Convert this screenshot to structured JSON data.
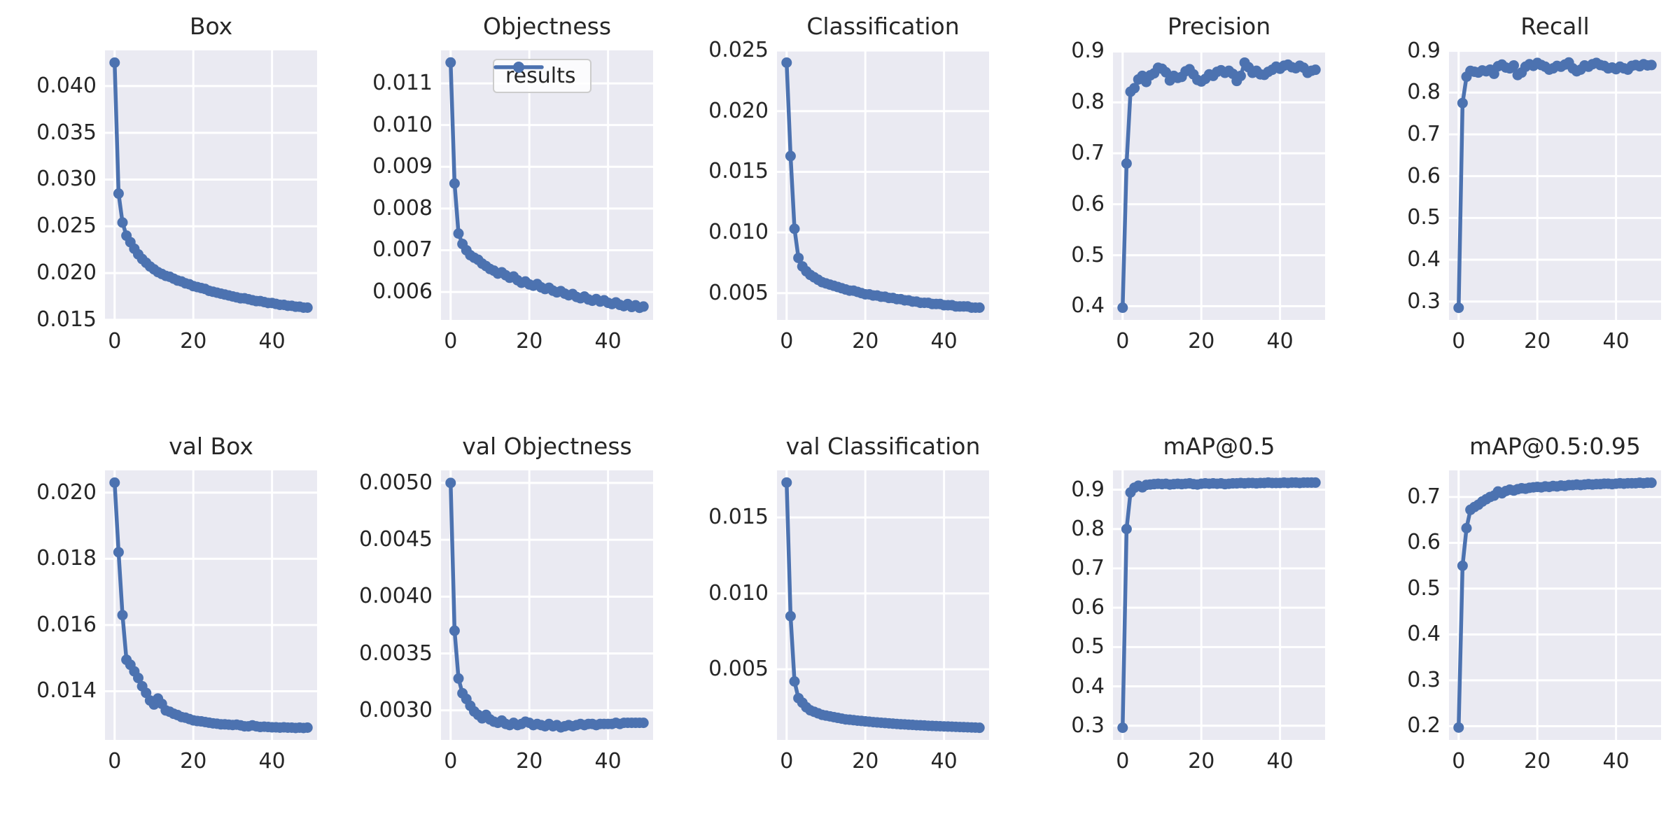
{
  "figure": {
    "background": "#ffffff",
    "axes_background": "#eaeaf2",
    "grid_color": "#ffffff",
    "line_color": "#4c72b0",
    "text_color": "#262626",
    "legend": {
      "label": "results",
      "border_color": "#cccccc",
      "background": "rgba(255,255,255,0.8)"
    }
  },
  "chart_data": [
    {
      "type": "line",
      "title": "Box",
      "series_name": "results",
      "xticks": [
        0,
        20,
        40
      ],
      "xlim": [
        -2.45,
        51.45
      ],
      "yticks": [
        0.015,
        0.02,
        0.025,
        0.03,
        0.035,
        0.04
      ],
      "ytick_labels": [
        "0.015",
        "0.020",
        "0.025",
        "0.030",
        "0.035",
        "0.040"
      ],
      "ylim": [
        0.01499,
        0.04381
      ],
      "grid": true,
      "show_legend": false,
      "values": [
        0.0425,
        0.0285,
        0.0254,
        0.024,
        0.0233,
        0.0226,
        0.022,
        0.0215,
        0.0211,
        0.0207,
        0.0204,
        0.0201,
        0.0199,
        0.0197,
        0.0196,
        0.0194,
        0.0192,
        0.0191,
        0.0189,
        0.0188,
        0.0186,
        0.0185,
        0.0184,
        0.0183,
        0.0181,
        0.018,
        0.0179,
        0.0178,
        0.0177,
        0.0176,
        0.0175,
        0.0174,
        0.0173,
        0.0173,
        0.0172,
        0.0171,
        0.017,
        0.017,
        0.0169,
        0.0168,
        0.0168,
        0.0167,
        0.0166,
        0.0166,
        0.0165,
        0.0165,
        0.0164,
        0.0164,
        0.0163,
        0.0163
      ]
    },
    {
      "type": "line",
      "title": "Objectness",
      "series_name": "results",
      "xticks": [
        0,
        20,
        40
      ],
      "xlim": [
        -2.45,
        51.45
      ],
      "yticks": [
        0.006,
        0.007,
        0.008,
        0.009,
        0.01,
        0.011
      ],
      "ytick_labels": [
        "0.006",
        "0.007",
        "0.008",
        "0.009",
        "0.010",
        "0.011"
      ],
      "ylim": [
        0.00533,
        0.01179
      ],
      "grid": true,
      "show_legend": true,
      "values": [
        0.0115,
        0.0086,
        0.0074,
        0.00715,
        0.007,
        0.00688,
        0.00682,
        0.00677,
        0.00668,
        0.00662,
        0.00655,
        0.00651,
        0.00644,
        0.00647,
        0.0064,
        0.00634,
        0.00637,
        0.00628,
        0.00622,
        0.00625,
        0.00618,
        0.00615,
        0.00619,
        0.00611,
        0.00607,
        0.0061,
        0.00603,
        0.00599,
        0.00602,
        0.00596,
        0.00592,
        0.00595,
        0.00588,
        0.00585,
        0.00589,
        0.00582,
        0.00579,
        0.00583,
        0.00577,
        0.0058,
        0.00574,
        0.00571,
        0.00575,
        0.00569,
        0.00566,
        0.00571,
        0.00564,
        0.00568,
        0.00562,
        0.00565
      ]
    },
    {
      "type": "line",
      "title": "Classification",
      "series_name": "results",
      "xticks": [
        0,
        20,
        40
      ],
      "xlim": [
        -2.45,
        51.45
      ],
      "yticks": [
        0.005,
        0.01,
        0.015,
        0.02,
        0.025
      ],
      "ytick_labels": [
        "0.005",
        "0.010",
        "0.015",
        "0.020",
        "0.025"
      ],
      "ylim": [
        0.00279,
        0.02501
      ],
      "grid": true,
      "show_legend": false,
      "values": [
        0.024,
        0.0163,
        0.0103,
        0.0079,
        0.0072,
        0.0068,
        0.0065,
        0.0063,
        0.0061,
        0.0059,
        0.0058,
        0.0057,
        0.0056,
        0.0055,
        0.0054,
        0.0053,
        0.0052,
        0.0052,
        0.0051,
        0.005,
        0.0049,
        0.0049,
        0.0048,
        0.0048,
        0.0047,
        0.0047,
        0.0046,
        0.0046,
        0.0045,
        0.0045,
        0.0044,
        0.0044,
        0.0043,
        0.0043,
        0.0042,
        0.0042,
        0.0042,
        0.0041,
        0.0041,
        0.0041,
        0.004,
        0.004,
        0.004,
        0.0039,
        0.0039,
        0.0039,
        0.0039,
        0.0038,
        0.0038,
        0.0038
      ]
    },
    {
      "type": "line",
      "title": "Precision",
      "series_name": "results",
      "xticks": [
        0,
        20,
        40
      ],
      "xlim": [
        -2.45,
        51.45
      ],
      "yticks": [
        0.4,
        0.5,
        0.6,
        0.7,
        0.8,
        0.9
      ],
      "ytick_labels": [
        "0.4",
        "0.5",
        "0.6",
        "0.7",
        "0.8",
        "0.9"
      ],
      "ylim": [
        0.373,
        0.902
      ],
      "grid": true,
      "show_legend": false,
      "values": [
        0.397,
        0.68,
        0.821,
        0.828,
        0.845,
        0.852,
        0.84,
        0.853,
        0.857,
        0.868,
        0.866,
        0.859,
        0.843,
        0.852,
        0.848,
        0.85,
        0.861,
        0.865,
        0.855,
        0.844,
        0.841,
        0.846,
        0.855,
        0.852,
        0.86,
        0.863,
        0.858,
        0.862,
        0.856,
        0.842,
        0.852,
        0.878,
        0.869,
        0.858,
        0.862,
        0.855,
        0.854,
        0.86,
        0.864,
        0.87,
        0.866,
        0.872,
        0.874,
        0.869,
        0.867,
        0.872,
        0.868,
        0.858,
        0.862,
        0.864
      ]
    },
    {
      "type": "line",
      "title": "Recall",
      "series_name": "results",
      "xticks": [
        0,
        20,
        40
      ],
      "xlim": [
        -2.45,
        51.45
      ],
      "yticks": [
        0.3,
        0.4,
        0.5,
        0.6,
        0.7,
        0.8,
        0.9
      ],
      "ytick_labels": [
        "0.3",
        "0.4",
        "0.5",
        "0.6",
        "0.7",
        "0.8",
        "0.9"
      ],
      "ylim": [
        0.256,
        0.901
      ],
      "grid": true,
      "show_legend": false,
      "values": [
        0.285,
        0.775,
        0.838,
        0.852,
        0.85,
        0.848,
        0.853,
        0.851,
        0.855,
        0.845,
        0.863,
        0.867,
        0.86,
        0.858,
        0.865,
        0.842,
        0.848,
        0.862,
        0.868,
        0.864,
        0.871,
        0.866,
        0.862,
        0.855,
        0.858,
        0.864,
        0.862,
        0.867,
        0.872,
        0.858,
        0.851,
        0.855,
        0.865,
        0.862,
        0.868,
        0.871,
        0.866,
        0.864,
        0.858,
        0.86,
        0.856,
        0.862,
        0.858,
        0.855,
        0.864,
        0.866,
        0.863,
        0.868,
        0.865,
        0.866
      ]
    },
    {
      "type": "line",
      "title": "val Box",
      "series_name": "results",
      "xticks": [
        0,
        20,
        40
      ],
      "xlim": [
        -2.45,
        51.45
      ],
      "yticks": [
        0.014,
        0.016,
        0.018,
        0.02
      ],
      "ytick_labels": [
        "0.014",
        "0.016",
        "0.018",
        "0.020"
      ],
      "ylim": [
        0.01253,
        0.02067
      ],
      "grid": true,
      "show_legend": false,
      "values": [
        0.0203,
        0.0182,
        0.0163,
        0.01495,
        0.0148,
        0.0146,
        0.0144,
        0.01415,
        0.01395,
        0.01372,
        0.0136,
        0.01378,
        0.01362,
        0.01342,
        0.01338,
        0.01332,
        0.01328,
        0.01322,
        0.0132,
        0.01316,
        0.01312,
        0.0131,
        0.01309,
        0.01307,
        0.01305,
        0.01303,
        0.01302,
        0.013,
        0.013,
        0.01299,
        0.01298,
        0.01299,
        0.01297,
        0.01294,
        0.01294,
        0.01297,
        0.01294,
        0.01292,
        0.01293,
        0.01292,
        0.01291,
        0.01291,
        0.0129,
        0.01291,
        0.0129,
        0.0129,
        0.01289,
        0.0129,
        0.01289,
        0.0129
      ]
    },
    {
      "type": "line",
      "title": "val Objectness",
      "series_name": "results",
      "xticks": [
        0,
        20,
        40
      ],
      "xlim": [
        -2.45,
        51.45
      ],
      "yticks": [
        0.003,
        0.0035,
        0.004,
        0.0045,
        0.005
      ],
      "ytick_labels": [
        "0.0030",
        "0.0035",
        "0.0040",
        "0.0045",
        "0.0050"
      ],
      "ylim": [
        0.00274,
        0.00511
      ],
      "grid": true,
      "show_legend": false,
      "values": [
        0.005,
        0.0037,
        0.00328,
        0.00315,
        0.0031,
        0.00304,
        0.00299,
        0.00296,
        0.00293,
        0.00296,
        0.00292,
        0.0029,
        0.00289,
        0.00291,
        0.00288,
        0.00287,
        0.00289,
        0.00287,
        0.00288,
        0.0029,
        0.00289,
        0.00287,
        0.00288,
        0.00287,
        0.00286,
        0.00288,
        0.00286,
        0.00287,
        0.00285,
        0.00286,
        0.00287,
        0.00286,
        0.00287,
        0.00288,
        0.00287,
        0.00288,
        0.00288,
        0.00287,
        0.00288,
        0.00288,
        0.00288,
        0.00288,
        0.00289,
        0.00288,
        0.00289,
        0.00289,
        0.00289,
        0.00289,
        0.00289,
        0.00289
      ]
    },
    {
      "type": "line",
      "title": "val Classification",
      "series_name": "results",
      "xticks": [
        0,
        20,
        40
      ],
      "xlim": [
        -2.45,
        51.45
      ],
      "yticks": [
        0.005,
        0.01,
        0.015
      ],
      "ytick_labels": [
        "0.005",
        "0.010",
        "0.015"
      ],
      "ylim": [
        0.00035,
        0.0181
      ],
      "grid": true,
      "show_legend": false,
      "values": [
        0.0173,
        0.0085,
        0.0042,
        0.0031,
        0.0028,
        0.0025,
        0.0023,
        0.0022,
        0.0021,
        0.002,
        0.00195,
        0.0019,
        0.00185,
        0.0018,
        0.00175,
        0.0017,
        0.00168,
        0.00165,
        0.00162,
        0.0016,
        0.00157,
        0.00155,
        0.00152,
        0.0015,
        0.00148,
        0.00146,
        0.00144,
        0.00142,
        0.0014,
        0.00138,
        0.00137,
        0.00135,
        0.00134,
        0.00132,
        0.00131,
        0.0013,
        0.00128,
        0.00127,
        0.00126,
        0.00125,
        0.00124,
        0.00123,
        0.00122,
        0.00121,
        0.0012,
        0.00119,
        0.00118,
        0.00117,
        0.00116,
        0.00115
      ]
    },
    {
      "type": "line",
      "title": "mAP@0.5",
      "series_name": "results",
      "xticks": [
        0,
        20,
        40
      ],
      "xlim": [
        -2.45,
        51.45
      ],
      "yticks": [
        0.3,
        0.4,
        0.5,
        0.6,
        0.7,
        0.8,
        0.9
      ],
      "ytick_labels": [
        "0.3",
        "0.4",
        "0.5",
        "0.6",
        "0.7",
        "0.8",
        "0.9"
      ],
      "ylim": [
        0.264,
        0.949
      ],
      "grid": true,
      "show_legend": false,
      "values": [
        0.295,
        0.8,
        0.893,
        0.905,
        0.91,
        0.906,
        0.912,
        0.913,
        0.914,
        0.915,
        0.914,
        0.915,
        0.913,
        0.914,
        0.915,
        0.914,
        0.915,
        0.916,
        0.914,
        0.913,
        0.915,
        0.916,
        0.915,
        0.916,
        0.915,
        0.916,
        0.914,
        0.915,
        0.916,
        0.916,
        0.917,
        0.916,
        0.917,
        0.917,
        0.916,
        0.917,
        0.917,
        0.918,
        0.917,
        0.917,
        0.917,
        0.918,
        0.917,
        0.918,
        0.918,
        0.917,
        0.918,
        0.918,
        0.918,
        0.918
      ]
    },
    {
      "type": "line",
      "title": "mAP@0.5:0.95",
      "series_name": "results",
      "xticks": [
        0,
        20,
        40
      ],
      "xlim": [
        -2.45,
        51.45
      ],
      "yticks": [
        0.2,
        0.3,
        0.4,
        0.5,
        0.6,
        0.7
      ],
      "ytick_labels": [
        "0.2",
        "0.3",
        "0.4",
        "0.5",
        "0.6",
        "0.7"
      ],
      "ylim": [
        0.17,
        0.758
      ],
      "grid": true,
      "show_legend": false,
      "values": [
        0.197,
        0.55,
        0.632,
        0.672,
        0.678,
        0.683,
        0.69,
        0.695,
        0.7,
        0.703,
        0.712,
        0.708,
        0.713,
        0.716,
        0.714,
        0.717,
        0.719,
        0.718,
        0.72,
        0.721,
        0.722,
        0.721,
        0.723,
        0.722,
        0.724,
        0.723,
        0.725,
        0.724,
        0.726,
        0.726,
        0.727,
        0.726,
        0.727,
        0.728,
        0.727,
        0.728,
        0.728,
        0.729,
        0.729,
        0.728,
        0.729,
        0.73,
        0.729,
        0.73,
        0.73,
        0.73,
        0.731,
        0.73,
        0.731,
        0.731
      ]
    }
  ]
}
